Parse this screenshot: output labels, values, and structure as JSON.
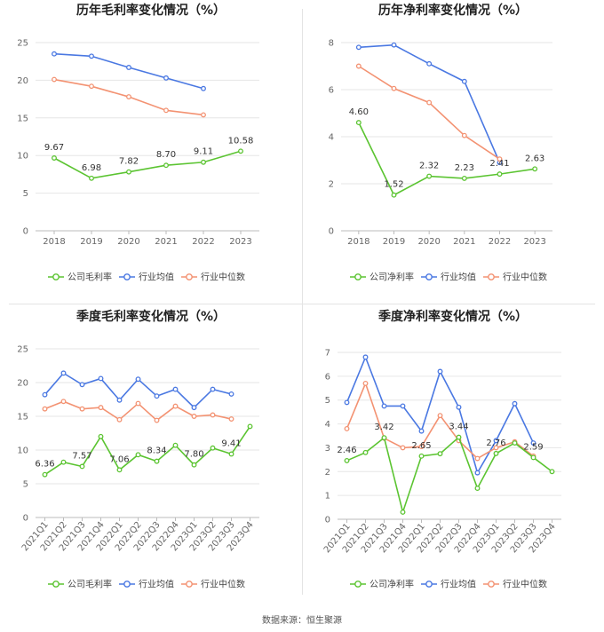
{
  "source": "数据来源：恒生聚源",
  "legend_names": [
    "行业均值",
    "行业中位数"
  ],
  "colors": {
    "company": "#5bc431",
    "mean": "#4a78e2",
    "median": "#f39272"
  },
  "chart_data": [
    {
      "id": "annual-gross",
      "type": "line",
      "title": "历年毛利率变化情况（%）",
      "categories": [
        "2018",
        "2019",
        "2020",
        "2021",
        "2022",
        "2023"
      ],
      "ylim": [
        0,
        25
      ],
      "yticks": [
        0,
        5,
        10,
        15,
        20,
        25
      ],
      "rotate_x": false,
      "series": [
        {
          "key": "company",
          "name": "公司毛利率",
          "values": [
            9.67,
            6.98,
            7.82,
            8.7,
            9.11,
            10.58
          ],
          "labels": [
            "9.67",
            "6.98",
            "7.82",
            "8.70",
            "9.11",
            "10.58"
          ]
        },
        {
          "key": "mean",
          "name": "行业均值",
          "values": [
            23.5,
            23.2,
            21.7,
            20.3,
            18.9,
            null
          ]
        },
        {
          "key": "median",
          "name": "行业中位数",
          "values": [
            20.1,
            19.2,
            17.8,
            16.0,
            15.4,
            null
          ]
        }
      ]
    },
    {
      "id": "annual-net",
      "type": "line",
      "title": "历年净利率变化情况（%）",
      "categories": [
        "2018",
        "2019",
        "2020",
        "2021",
        "2022",
        "2023"
      ],
      "ylim": [
        0,
        8
      ],
      "yticks": [
        0,
        2,
        4,
        6,
        8
      ],
      "rotate_x": false,
      "series": [
        {
          "key": "company",
          "name": "公司净利率",
          "values": [
            4.6,
            1.52,
            2.32,
            2.23,
            2.41,
            2.63
          ],
          "labels": [
            "4.60",
            "1.52",
            "2.32",
            "2.23",
            "2.41",
            "2.63"
          ]
        },
        {
          "key": "mean",
          "name": "行业均值",
          "values": [
            7.8,
            7.9,
            7.1,
            6.35,
            2.9,
            null
          ]
        },
        {
          "key": "median",
          "name": "行业中位数",
          "values": [
            7.0,
            6.05,
            5.45,
            4.05,
            3.05,
            null
          ]
        }
      ]
    },
    {
      "id": "quarterly-gross",
      "type": "line",
      "title": "季度毛利率变化情况（%）",
      "categories": [
        "2021Q1",
        "2021Q2",
        "2021Q3",
        "2021Q4",
        "2022Q1",
        "2022Q2",
        "2022Q3",
        "2022Q4",
        "2023Q1",
        "2023Q2",
        "2023Q3",
        "2023Q4"
      ],
      "ylim": [
        0,
        25
      ],
      "yticks": [
        0,
        5,
        10,
        15,
        20,
        25
      ],
      "rotate_x": true,
      "series": [
        {
          "key": "company",
          "name": "公司毛利率",
          "values": [
            6.36,
            8.2,
            7.57,
            12.0,
            7.06,
            9.3,
            8.34,
            10.7,
            7.8,
            10.3,
            9.41,
            13.5
          ],
          "labels": [
            "6.36",
            "",
            "7.57",
            "",
            "7.06",
            "",
            "8.34",
            "",
            "7.80",
            "",
            "9.41",
            ""
          ]
        },
        {
          "key": "mean",
          "name": "行业均值",
          "values": [
            18.2,
            21.4,
            19.7,
            20.6,
            17.4,
            20.5,
            18.0,
            19.0,
            16.3,
            19.0,
            18.3,
            null
          ]
        },
        {
          "key": "median",
          "name": "行业中位数",
          "values": [
            16.1,
            17.2,
            16.1,
            16.3,
            14.5,
            16.9,
            14.4,
            16.5,
            15.0,
            15.2,
            14.6,
            null
          ]
        }
      ]
    },
    {
      "id": "quarterly-net",
      "type": "line",
      "title": "季度净利率变化情况（%）",
      "categories": [
        "2021Q1",
        "2021Q2",
        "2021Q3",
        "2021Q4",
        "2022Q1",
        "2022Q2",
        "2022Q3",
        "2022Q4",
        "2023Q1",
        "2023Q2",
        "2023Q3",
        "2023Q4"
      ],
      "ylim": [
        0,
        7
      ],
      "yticks": [
        0,
        1,
        2,
        3,
        4,
        5,
        6,
        7
      ],
      "rotate_x": true,
      "series": [
        {
          "key": "company",
          "name": "公司净利率",
          "values": [
            2.46,
            2.8,
            3.42,
            0.3,
            2.65,
            2.75,
            3.44,
            1.3,
            2.76,
            3.2,
            2.59,
            2.0
          ],
          "labels": [
            "2.46",
            "",
            "3.42",
            "",
            "2.65",
            "",
            "3.44",
            "",
            "2.76",
            "",
            "2.59",
            ""
          ]
        },
        {
          "key": "mean",
          "name": "行业均值",
          "values": [
            4.9,
            6.8,
            4.75,
            4.75,
            3.7,
            6.2,
            4.7,
            1.95,
            3.3,
            4.85,
            3.2,
            null
          ]
        },
        {
          "key": "median",
          "name": "行业中位数",
          "values": [
            3.8,
            5.7,
            3.4,
            3.0,
            3.05,
            4.35,
            3.3,
            2.55,
            3.0,
            3.25,
            2.65,
            null
          ]
        }
      ]
    }
  ]
}
